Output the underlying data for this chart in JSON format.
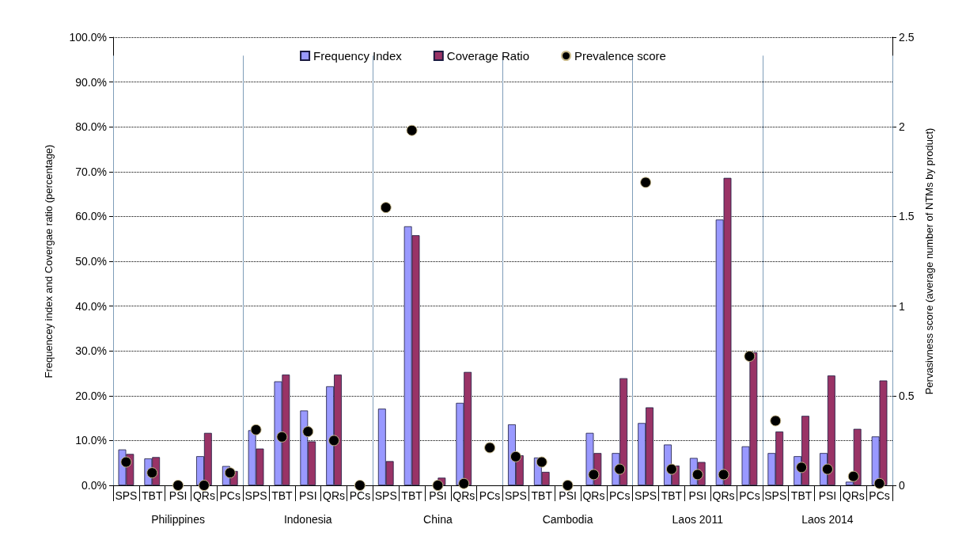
{
  "chart_data": {
    "type": "bar",
    "categories": [
      "SPS",
      "TBT",
      "PSI",
      "QRs",
      "PCs",
      "SPS",
      "TBT",
      "PSI",
      "QRs",
      "PCs",
      "SPS",
      "TBT",
      "PSI",
      "QRs",
      "PCs",
      "SPS",
      "TBT",
      "PSI",
      "QRs",
      "PCs",
      "SPS",
      "TBT",
      "PSI",
      "QRs",
      "PCs",
      "SPS",
      "TBT",
      "PSI",
      "QRs",
      "PCs"
    ],
    "annotations": [
      "Philippines",
      "Indonesia",
      "China",
      "Cambodia",
      "Laos 2011",
      "Laos 2014"
    ],
    "ylabel": "Frequencey index and Covergae ratio (percentage)",
    "y2label": "Pervasivness score (average number of NTMs by product)",
    "series": [
      {
        "name": "Frequency Index",
        "color": "#9999ff",
        "values": [
          8,
          6,
          null,
          6.5,
          4.3,
          12.3,
          23.2,
          16.7,
          22.1,
          0,
          17.1,
          57.8,
          null,
          18.4,
          0,
          13.6,
          6.2,
          0,
          11.7,
          7.2,
          13.9,
          9.1,
          6.1,
          59.3,
          8.7,
          7.2,
          6.5,
          7.2,
          0.8,
          10.9
        ]
      },
      {
        "name": "Coverage Ratio",
        "color": "#993366",
        "values": [
          7,
          6.3,
          null,
          11.7,
          3.2,
          8.2,
          24.7,
          9.8,
          24.7,
          0,
          5.4,
          55.8,
          1.7,
          25.3,
          0,
          6.7,
          3,
          0,
          7.2,
          23.9,
          17.4,
          4.4,
          5.2,
          68.6,
          29.7,
          12,
          15.5,
          24.5,
          12.6,
          23.4
        ]
      },
      {
        "name": "Prevalence score",
        "type": "scatter",
        "axis": "y2",
        "color": "#000000",
        "values": [
          0.13,
          0.07,
          0,
          0,
          0.07,
          0.31,
          0.27,
          0.3,
          0.25,
          0,
          1.55,
          1.98,
          0,
          0.01,
          0.21,
          0.16,
          0.13,
          0,
          0.06,
          0.09,
          1.69,
          0.09,
          0.06,
          0.06,
          0.72,
          0.36,
          0.1,
          0.09,
          0.05,
          0.01
        ]
      }
    ],
    "ylim": [
      0,
      100
    ],
    "yticks": [
      {
        "value": 0,
        "label": "0.0%"
      },
      {
        "value": 10,
        "label": "10.0%"
      },
      {
        "value": 20,
        "label": "20.0%"
      },
      {
        "value": 30,
        "label": "30.0%"
      },
      {
        "value": 40,
        "label": "40.0%"
      },
      {
        "value": 50,
        "label": "50.0%"
      },
      {
        "value": 60,
        "label": "60.0%"
      },
      {
        "value": 70,
        "label": "70.0%"
      },
      {
        "value": 80,
        "label": "80.0%"
      },
      {
        "value": 90,
        "label": "90.0%"
      },
      {
        "value": 100,
        "label": "100.0%"
      }
    ],
    "y2lim": [
      0,
      2.5
    ],
    "y2ticks": [
      0,
      0.5,
      1,
      1.5,
      2,
      2.5
    ],
    "grid": "y",
    "legend": "top",
    "marker": "circle"
  }
}
